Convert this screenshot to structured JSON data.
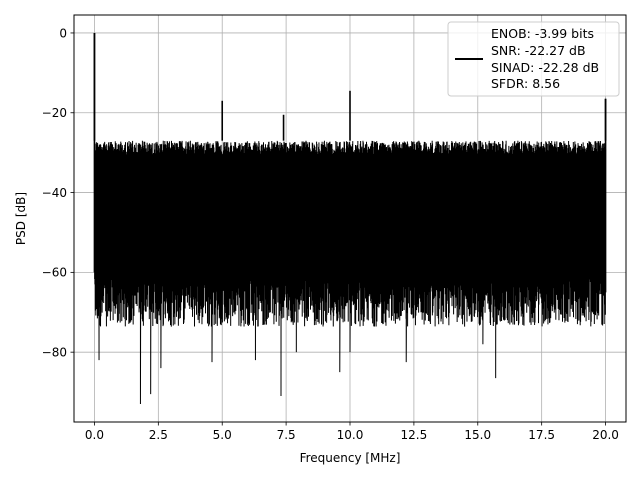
{
  "chart_data": {
    "type": "line",
    "title": "",
    "xlabel": "Frequency [MHz]",
    "ylabel": "PSD [dB]",
    "xlim": [
      -0.8,
      20.8
    ],
    "ylim": [
      -97.5,
      4.5
    ],
    "xticks": [
      0.0,
      2.5,
      5.0,
      7.5,
      10.0,
      12.5,
      15.0,
      17.5,
      20.0
    ],
    "xtick_labels": [
      "0.0",
      "2.5",
      "5.0",
      "7.5",
      "10.0",
      "12.5",
      "15.0",
      "17.5",
      "20.0"
    ],
    "yticks": [
      0,
      -20,
      -40,
      -60,
      -80
    ],
    "ytick_labels": [
      "0",
      "−20",
      "−40",
      "−60",
      "−80"
    ],
    "grid": true,
    "legend_position": "top-right",
    "legend": [
      "ENOB: -3.99 bits",
      "SNR: -22.27 dB",
      "SINAD: -22.28 dB",
      "SFDR: 8.56"
    ],
    "series_color": "#000000",
    "series": [
      {
        "description_of_shape": "dense noise band",
        "x_range": [
          0.0,
          20.0
        ],
        "noise_ceiling_dB": -27,
        "noise_floor_dB": -70,
        "peaks": [
          {
            "x": 0.0,
            "y": 0.0
          },
          {
            "x": 5.0,
            "y": -17.0
          },
          {
            "x": 7.4,
            "y": -20.5
          },
          {
            "x": 10.0,
            "y": -14.5
          },
          {
            "x": 20.0,
            "y": -16.5
          }
        ],
        "deep_notches": [
          {
            "x": 0.18,
            "y": -82
          },
          {
            "x": 1.8,
            "y": -93
          },
          {
            "x": 2.2,
            "y": -90.5
          },
          {
            "x": 2.6,
            "y": -84
          },
          {
            "x": 4.6,
            "y": -82.5
          },
          {
            "x": 6.3,
            "y": -82
          },
          {
            "x": 7.3,
            "y": -91
          },
          {
            "x": 7.9,
            "y": -80
          },
          {
            "x": 9.6,
            "y": -85
          },
          {
            "x": 10.0,
            "y": -80
          },
          {
            "x": 12.2,
            "y": -82.5
          },
          {
            "x": 15.7,
            "y": -86.5
          },
          {
            "x": 15.2,
            "y": -78
          }
        ]
      }
    ]
  }
}
